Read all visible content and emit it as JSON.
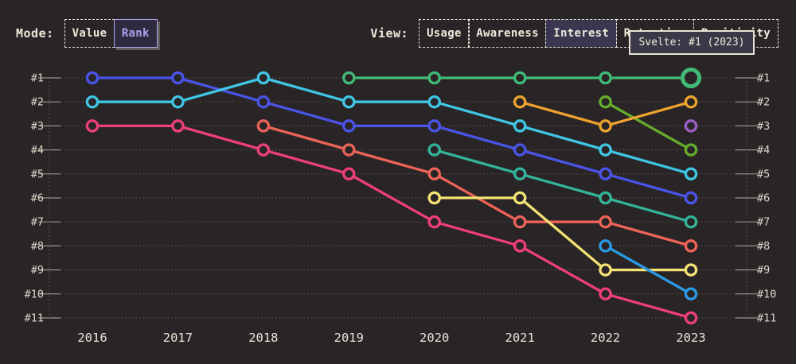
{
  "mode_toggle": {
    "label": "Mode:",
    "options": [
      {
        "label": "Value",
        "selected": false
      },
      {
        "label": "Rank",
        "selected": true
      }
    ]
  },
  "view_toggle": {
    "label": "View:",
    "options": [
      {
        "label": "Usage",
        "selected": false
      },
      {
        "label": "Awareness",
        "selected": false
      },
      {
        "label": "Interest",
        "selected": true
      },
      {
        "label": "Retention",
        "selected": false
      },
      {
        "label": "Positivity",
        "selected": false
      }
    ]
  },
  "tooltip": {
    "text": "Svelte: #1 (2023)"
  },
  "colors": {
    "background": "#292425",
    "text": "#e9e3d6",
    "gridline": "#57504e",
    "tick": "#9a948a",
    "selected_view_bg": "#3b3750",
    "rank_button_text": "#b1a0f2",
    "tooltip_bg": "#3b3947"
  },
  "chart_data": {
    "type": "line",
    "variant": "rank-bump",
    "x": [
      2016,
      2017,
      2018,
      2019,
      2020,
      2021,
      2022,
      2023
    ],
    "y_axis": {
      "labels": [
        "#1",
        "#2",
        "#3",
        "#4",
        "#5",
        "#6",
        "#7",
        "#8",
        "#9",
        "#10",
        "#11"
      ],
      "min_rank": 1,
      "max_rank": 11,
      "mirrored": true
    },
    "grid": "dotted-horizontal",
    "legend": "none",
    "series": [
      {
        "name": "blue",
        "color": "#4a54e8",
        "ranks": [
          1,
          1,
          2,
          3,
          3,
          4,
          5,
          6
        ]
      },
      {
        "name": "cyan",
        "color": "#3fc6e4",
        "ranks": [
          2,
          2,
          1,
          2,
          2,
          3,
          4,
          5
        ]
      },
      {
        "name": "pink",
        "color": "#ee3e7b",
        "ranks": [
          3,
          3,
          4,
          5,
          7,
          8,
          10,
          11
        ]
      },
      {
        "name": "salmon",
        "color": "#ec6357",
        "ranks": [
          null,
          null,
          3,
          4,
          5,
          7,
          7,
          8
        ]
      },
      {
        "name": "teal",
        "color": "#33b49a",
        "ranks": [
          null,
          null,
          null,
          null,
          4,
          5,
          6,
          7
        ]
      },
      {
        "name": "yellow",
        "color": "#f3e275",
        "ranks": [
          null,
          null,
          null,
          null,
          6,
          6,
          9,
          9
        ]
      },
      {
        "name": "sky-blue",
        "color": "#2a9ae4",
        "ranks": [
          null,
          null,
          null,
          null,
          null,
          null,
          8,
          10
        ]
      },
      {
        "name": "lime",
        "color": "#64ad2d",
        "ranks": [
          null,
          null,
          null,
          null,
          null,
          null,
          2,
          4
        ]
      },
      {
        "name": "amber",
        "color": "#eda22e",
        "ranks": [
          null,
          null,
          null,
          null,
          null,
          2,
          3,
          2
        ]
      },
      {
        "name": "svelte-green",
        "color": "#41ba77",
        "ranks": [
          null,
          null,
          null,
          1,
          1,
          1,
          1,
          1
        ]
      },
      {
        "name": "purple",
        "color": "#9c5fc7",
        "ranks": [
          null,
          null,
          null,
          null,
          null,
          null,
          null,
          3
        ]
      }
    ],
    "highlight": {
      "series": "svelte-green",
      "x": 2023,
      "rank": 1,
      "tooltip": "Svelte: #1 (2023)"
    }
  }
}
